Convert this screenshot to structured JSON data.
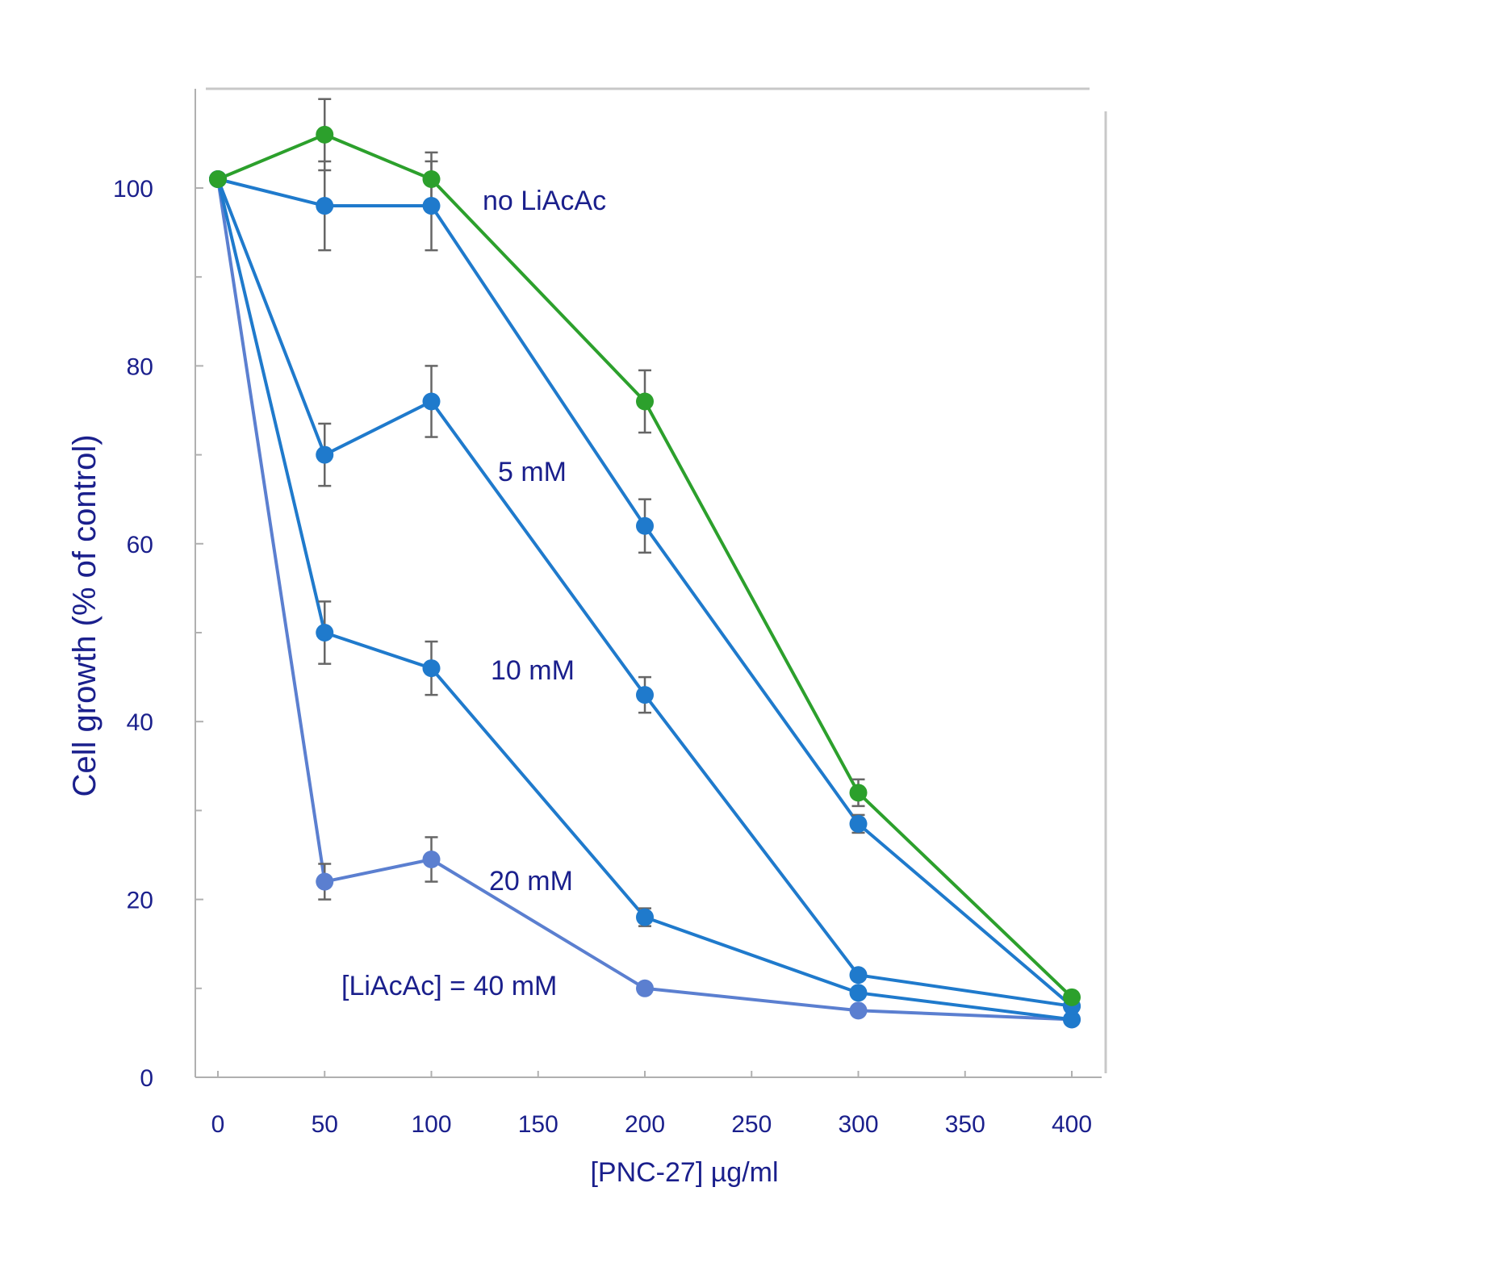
{
  "chart_data": {
    "type": "line",
    "xlabel": "[PNC-27]  µg/ml",
    "ylabel": "Cell growth (% of control)",
    "xlim": [
      -10,
      410
    ],
    "ylim": [
      0,
      110
    ],
    "xticks": [
      0,
      50,
      100,
      150,
      200,
      250,
      300,
      350,
      400
    ],
    "yticks": [
      0,
      20,
      40,
      60,
      80,
      100
    ],
    "x": [
      0,
      50,
      100,
      200,
      300,
      400
    ],
    "grid": false,
    "series": [
      {
        "name": "no LiAcAc",
        "color": "#2ca02c",
        "values": [
          101,
          106,
          101,
          76,
          32,
          9
        ],
        "errors": [
          0,
          4,
          3,
          3.5,
          1.5,
          0
        ]
      },
      {
        "name": "5 mM",
        "color": "#1f7acc",
        "values": [
          101,
          98,
          98,
          62,
          28.5,
          8
        ],
        "errors": [
          0,
          5,
          5,
          3,
          1,
          0
        ]
      },
      {
        "name": "10 mM",
        "color": "#1f7acc",
        "values": [
          101,
          70,
          76,
          43,
          11.5,
          8
        ],
        "errors": [
          0,
          3.5,
          4,
          2,
          0,
          0
        ]
      },
      {
        "name": "20 mM",
        "color": "#1f7acc",
        "values": [
          101,
          50,
          46,
          18,
          9.5,
          6.5
        ],
        "errors": [
          0,
          3.5,
          3,
          1,
          0,
          0
        ]
      },
      {
        "name": "[LiAcAc] = 40 mM",
        "color": "#5b7fd0",
        "values": [
          101,
          22,
          24.5,
          10,
          7.5,
          6.5
        ],
        "errors": [
          0,
          2,
          2.5,
          0.5,
          0,
          0
        ]
      }
    ]
  }
}
